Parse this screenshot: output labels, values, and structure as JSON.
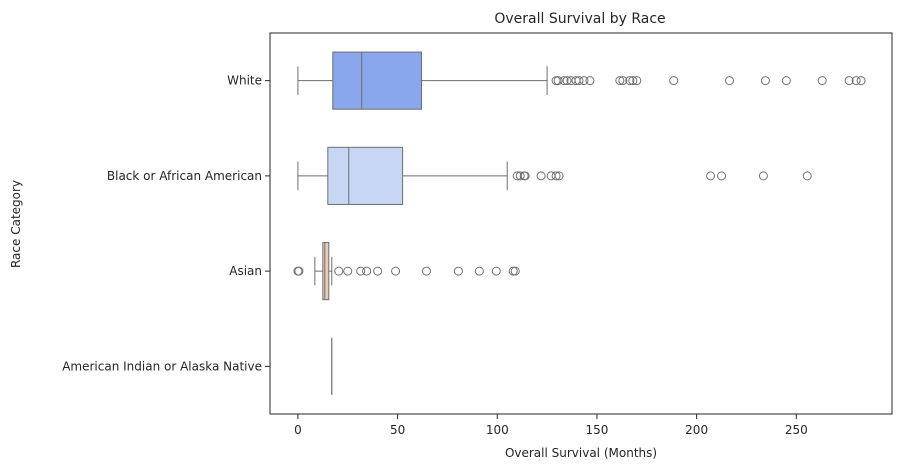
{
  "chart_data": {
    "type": "boxplot",
    "orientation": "horizontal",
    "title": "Overall Survival by Race",
    "xlabel": "Overall Survival (Months)",
    "ylabel": "Race Category",
    "xlim": [
      -14,
      298
    ],
    "xticks": [
      0,
      50,
      100,
      150,
      200,
      250
    ],
    "grid": false,
    "categories": [
      "White",
      "Black or African American",
      "Asian",
      "American Indian or Alaska Native"
    ],
    "series": [
      {
        "category": "White",
        "color": "#8aa6ec",
        "whisker_low": 0,
        "q1": 17.5,
        "median": 32,
        "q3": 62,
        "whisker_high": 125,
        "outliers": [
          129.5,
          130.5,
          133.5,
          135,
          137,
          139.5,
          141,
          143.5,
          146.5,
          161.5,
          163,
          166.5,
          168,
          170,
          188.5,
          216.5,
          234.5,
          245,
          263,
          276.5,
          280,
          282.5
        ]
      },
      {
        "category": "Black or African American",
        "color": "#c7d6f2",
        "whisker_low": 0,
        "q1": 15,
        "median": 25.5,
        "q3": 52.5,
        "whisker_high": 105,
        "outliers": [
          110,
          111.5,
          113.5,
          114,
          122,
          127,
          129.5,
          131,
          207,
          212.5,
          233.5,
          255.5
        ]
      },
      {
        "category": "Asian",
        "color": "#eccbbd",
        "whisker_low": 8.5,
        "q1": 12.5,
        "median": 13.5,
        "q3": 15.5,
        "whisker_high": 17,
        "outliers": [
          0,
          0.5,
          20.5,
          25,
          31.5,
          34.5,
          40,
          49,
          64.5,
          80.5,
          91,
          99.5,
          108,
          109
        ]
      },
      {
        "category": "American Indian or Alaska Native",
        "color": "#e8a890",
        "whisker_low": 17,
        "q1": 17,
        "median": 17,
        "q3": 17,
        "whisker_high": 17,
        "outliers": []
      }
    ]
  }
}
